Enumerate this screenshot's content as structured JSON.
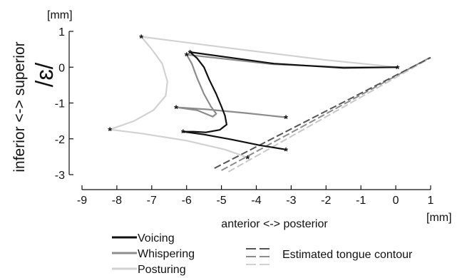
{
  "chart_data": {
    "type": "line",
    "y_unit_label": "[mm]",
    "x_unit_label": "[mm]",
    "ylabel": "inferior <-> superior",
    "vowel_label": "/ɛ/",
    "xlabel": "anterior <-> posterior",
    "xlim": [
      -9,
      1
    ],
    "ylim": [
      -3,
      1
    ],
    "xticks": [
      "-9",
      "-8",
      "-7",
      "-6",
      "-5",
      "-4",
      "-3",
      "-2",
      "-1",
      "0",
      "1"
    ],
    "yticks": [
      "1",
      "0",
      "-1",
      "-2",
      "-3"
    ],
    "grid": false,
    "legend": {
      "placement": "bottom",
      "entries": [
        {
          "name": "Voicing",
          "color": "#111111"
        },
        {
          "name": "Whispering",
          "color": "#8c8c8c"
        },
        {
          "name": "Posturing",
          "color": "#d2d2d2"
        }
      ],
      "contour_label": "Estimated tongue contour"
    },
    "series": [
      {
        "name": "Voicing",
        "color": "#111111",
        "lines": [
          [
            [
              0.05,
              0.0
            ],
            [
              -1.5,
              -0.02
            ],
            [
              -3.5,
              0.1
            ],
            [
              -5.9,
              0.42
            ]
          ],
          [
            [
              -5.9,
              0.42
            ],
            [
              -5.7,
              0.25
            ],
            [
              -5.5,
              0.0
            ],
            [
              -5.35,
              -0.35
            ],
            [
              -5.15,
              -0.75
            ],
            [
              -5.0,
              -1.1
            ],
            [
              -4.9,
              -1.35
            ],
            [
              -4.85,
              -1.6
            ],
            [
              -5.05,
              -1.75
            ],
            [
              -5.45,
              -1.82
            ],
            [
              -5.8,
              -1.8
            ],
            [
              -6.1,
              -1.8
            ]
          ],
          [
            [
              -6.1,
              -1.8
            ],
            [
              -5.5,
              -1.88
            ],
            [
              -4.7,
              -2.02
            ],
            [
              -3.9,
              -2.18
            ],
            [
              -3.15,
              -2.3
            ]
          ]
        ],
        "markers": [
          [
            0.05,
            0.0
          ],
          [
            -5.9,
            0.42
          ],
          [
            -6.1,
            -1.8
          ],
          [
            -3.15,
            -2.3
          ]
        ]
      },
      {
        "name": "Whispering",
        "color": "#8c8c8c",
        "lines": [
          [
            [
              0.05,
              0.0
            ],
            [
              -1.5,
              0.0
            ],
            [
              -3.5,
              0.08
            ],
            [
              -6.0,
              0.35
            ]
          ],
          [
            [
              -6.0,
              0.35
            ],
            [
              -5.85,
              0.1
            ],
            [
              -5.7,
              -0.3
            ],
            [
              -5.5,
              -0.75
            ],
            [
              -5.3,
              -1.1
            ],
            [
              -5.15,
              -1.3
            ],
            [
              -5.25,
              -1.38
            ],
            [
              -5.7,
              -1.2
            ],
            [
              -6.3,
              -1.12
            ]
          ],
          [
            [
              -6.3,
              -1.12
            ],
            [
              -5.4,
              -1.18
            ],
            [
              -4.3,
              -1.28
            ],
            [
              -3.15,
              -1.4
            ]
          ]
        ],
        "markers": [
          [
            -6.0,
            0.35
          ],
          [
            -6.3,
            -1.12
          ],
          [
            -3.15,
            -1.4
          ]
        ]
      },
      {
        "name": "Posturing",
        "color": "#d2d2d2",
        "lines": [
          [
            [
              0.05,
              0.0
            ],
            [
              -2.0,
              0.2
            ],
            [
              -4.5,
              0.5
            ],
            [
              -7.3,
              0.85
            ]
          ],
          [
            [
              -7.3,
              0.85
            ],
            [
              -7.0,
              0.5
            ],
            [
              -6.7,
              0.1
            ],
            [
              -6.55,
              -0.4
            ],
            [
              -6.6,
              -0.8
            ],
            [
              -6.95,
              -1.2
            ],
            [
              -7.5,
              -1.5
            ],
            [
              -8.2,
              -1.74
            ]
          ],
          [
            [
              -8.2,
              -1.74
            ],
            [
              -7.3,
              -1.85
            ],
            [
              -6.0,
              -2.05
            ],
            [
              -4.9,
              -2.3
            ],
            [
              -4.25,
              -2.52
            ]
          ]
        ],
        "markers": [
          [
            -7.3,
            0.85
          ],
          [
            -8.2,
            -1.74
          ],
          [
            -4.25,
            -2.52
          ]
        ]
      }
    ],
    "tongue_contours": [
      {
        "name": "Whispering",
        "color": "#8c8c8c",
        "points": [
          [
            -5.0,
            -2.88
          ],
          [
            1.0,
            0.28
          ]
        ]
      },
      {
        "name": "Posturing",
        "color": "#c8c8c8",
        "points": [
          [
            -4.8,
            -2.92
          ],
          [
            1.0,
            0.26
          ]
        ]
      },
      {
        "name": "Voicing",
        "color": "#555555",
        "points": [
          [
            -5.2,
            -2.82
          ],
          [
            1.0,
            0.27
          ]
        ]
      }
    ]
  }
}
